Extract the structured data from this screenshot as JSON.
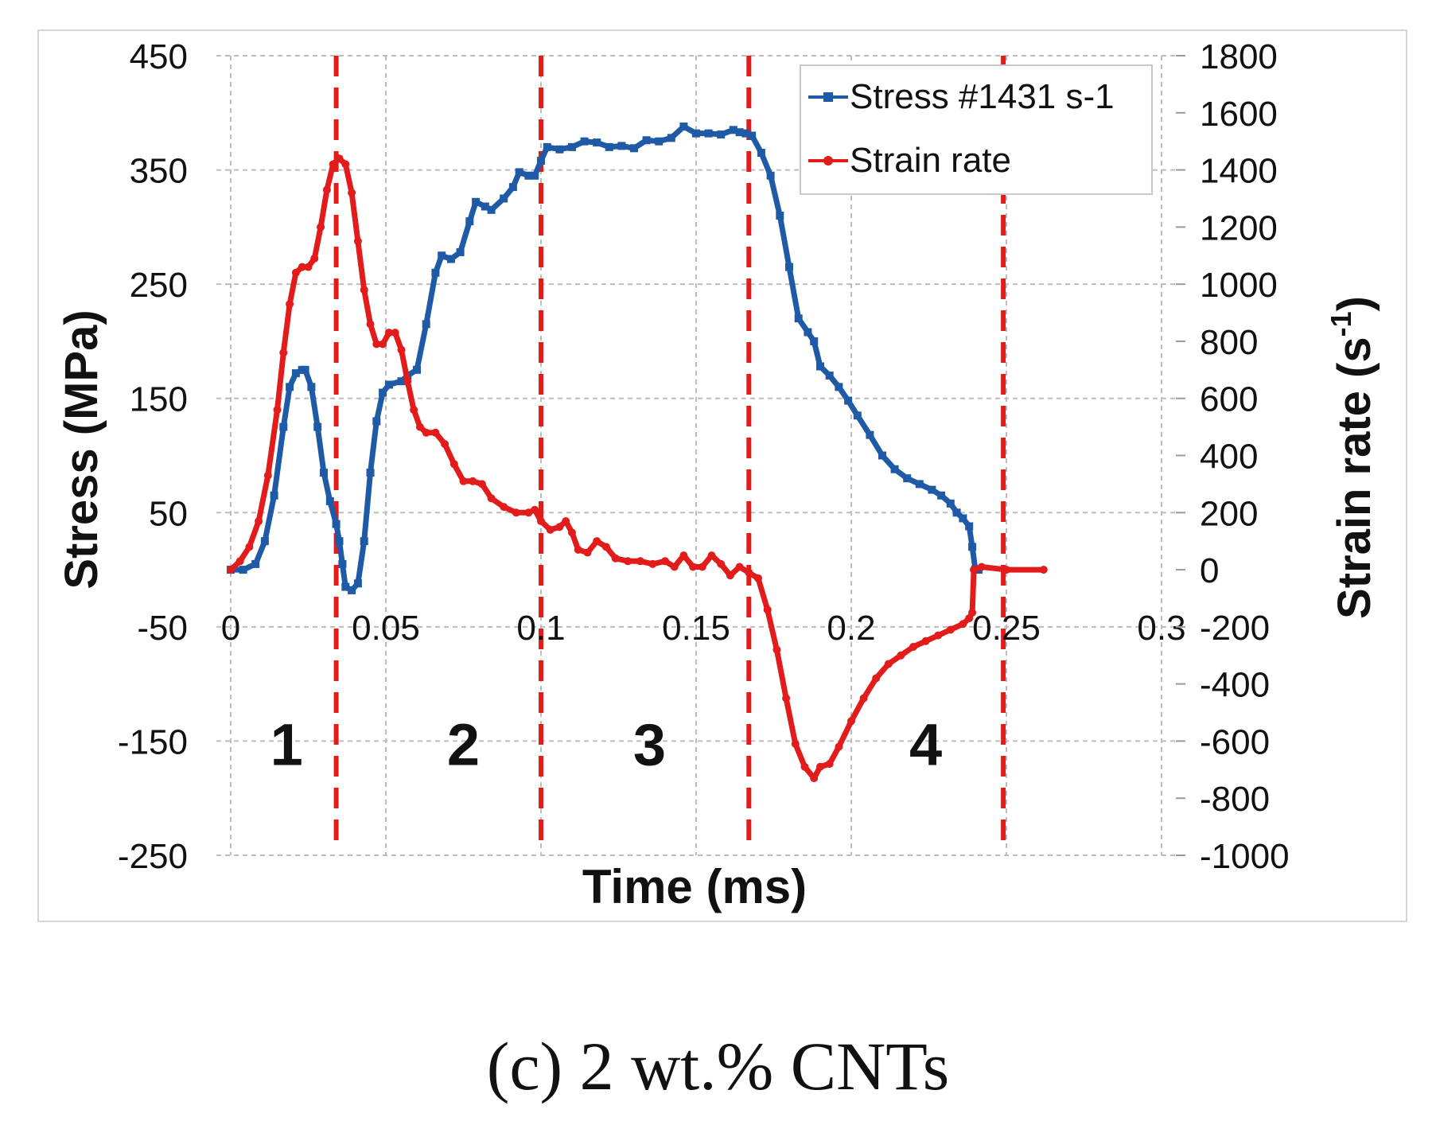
{
  "caption": "(c) 2 wt.% CNTs",
  "chart_data": {
    "type": "line",
    "xlabel": "Time (ms)",
    "ylabel_left": "Stress (MPa)",
    "ylabel_right_base": "Strain rate (s",
    "ylabel_right_sup": "-1",
    "ylabel_right_tail": ")",
    "xlim": [
      0,
      0.3
    ],
    "ylim_left": [
      -250,
      450
    ],
    "ylim_right": [
      -1000,
      1800
    ],
    "x_ticks": [
      "0",
      "0.05",
      "0.1",
      "0.15",
      "0.2",
      "0.25",
      "0.3"
    ],
    "x_tick_values": [
      0,
      0.05,
      0.1,
      0.15,
      0.2,
      0.25,
      0.3
    ],
    "y_left_ticks": [
      "450",
      "350",
      "250",
      "150",
      "50",
      "-50",
      "-150",
      "-250"
    ],
    "y_left_tick_values": [
      450,
      350,
      250,
      150,
      50,
      -50,
      -150,
      -250
    ],
    "y_right_ticks": [
      "1800",
      "1600",
      "1400",
      "1200",
      "1000",
      "800",
      "600",
      "400",
      "200",
      "0",
      "-200",
      "-400",
      "-600",
      "-800",
      "-1000"
    ],
    "y_right_tick_values": [
      1800,
      1600,
      1400,
      1200,
      1000,
      800,
      600,
      400,
      200,
      0,
      -200,
      -400,
      -600,
      -800,
      -1000
    ],
    "grid": true,
    "legend_position": "top-right",
    "colors": {
      "stress": "#1f5aa6",
      "strain": "#e21b1b",
      "divider": "#e21b1b",
      "grid": "#bdbdbd",
      "axis": "#222222"
    },
    "series": [
      {
        "name": "Stress #1431 s-1",
        "axis": "left",
        "marker": "square",
        "points": [
          [
            0.0,
            0
          ],
          [
            0.004,
            0
          ],
          [
            0.008,
            5
          ],
          [
            0.011,
            25
          ],
          [
            0.014,
            65
          ],
          [
            0.017,
            125
          ],
          [
            0.019,
            160
          ],
          [
            0.021,
            172
          ],
          [
            0.023,
            175
          ],
          [
            0.024,
            175
          ],
          [
            0.026,
            160
          ],
          [
            0.028,
            125
          ],
          [
            0.03,
            85
          ],
          [
            0.032,
            60
          ],
          [
            0.034,
            40
          ],
          [
            0.035,
            25
          ],
          [
            0.036,
            5
          ],
          [
            0.037,
            -15
          ],
          [
            0.039,
            -18
          ],
          [
            0.041,
            -12
          ],
          [
            0.043,
            25
          ],
          [
            0.045,
            85
          ],
          [
            0.047,
            130
          ],
          [
            0.049,
            155
          ],
          [
            0.051,
            162
          ],
          [
            0.055,
            165
          ],
          [
            0.057,
            170
          ],
          [
            0.06,
            175
          ],
          [
            0.063,
            215
          ],
          [
            0.066,
            260
          ],
          [
            0.068,
            275
          ],
          [
            0.071,
            272
          ],
          [
            0.074,
            278
          ],
          [
            0.077,
            305
          ],
          [
            0.079,
            322
          ],
          [
            0.082,
            318
          ],
          [
            0.084,
            315
          ],
          [
            0.088,
            325
          ],
          [
            0.091,
            335
          ],
          [
            0.093,
            348
          ],
          [
            0.096,
            345
          ],
          [
            0.098,
            345
          ],
          [
            0.1,
            358
          ],
          [
            0.102,
            370
          ],
          [
            0.106,
            368
          ],
          [
            0.11,
            370
          ],
          [
            0.114,
            375
          ],
          [
            0.118,
            374
          ],
          [
            0.122,
            370
          ],
          [
            0.126,
            371
          ],
          [
            0.13,
            369
          ],
          [
            0.134,
            376
          ],
          [
            0.138,
            375
          ],
          [
            0.142,
            378
          ],
          [
            0.146,
            388
          ],
          [
            0.15,
            382
          ],
          [
            0.154,
            382
          ],
          [
            0.158,
            381
          ],
          [
            0.162,
            385
          ],
          [
            0.164,
            383
          ],
          [
            0.166,
            382
          ],
          [
            0.168,
            380
          ],
          [
            0.171,
            365
          ],
          [
            0.174,
            345
          ],
          [
            0.177,
            310
          ],
          [
            0.18,
            265
          ],
          [
            0.183,
            220
          ],
          [
            0.186,
            208
          ],
          [
            0.188,
            200
          ],
          [
            0.19,
            178
          ],
          [
            0.193,
            170
          ],
          [
            0.196,
            160
          ],
          [
            0.199,
            148
          ],
          [
            0.202,
            135
          ],
          [
            0.206,
            118
          ],
          [
            0.21,
            100
          ],
          [
            0.214,
            88
          ],
          [
            0.218,
            80
          ],
          [
            0.222,
            75
          ],
          [
            0.226,
            70
          ],
          [
            0.229,
            65
          ],
          [
            0.232,
            58
          ],
          [
            0.234,
            50
          ],
          [
            0.236,
            45
          ],
          [
            0.238,
            38
          ],
          [
            0.239,
            20
          ],
          [
            0.24,
            0
          ],
          [
            0.241,
            0
          ]
        ]
      },
      {
        "name": "Strain rate",
        "axis": "right",
        "marker": "circle",
        "points": [
          [
            0.0,
            0
          ],
          [
            0.003,
            30
          ],
          [
            0.006,
            80
          ],
          [
            0.009,
            170
          ],
          [
            0.012,
            330
          ],
          [
            0.015,
            560
          ],
          [
            0.017,
            760
          ],
          [
            0.019,
            930
          ],
          [
            0.021,
            1040
          ],
          [
            0.023,
            1060
          ],
          [
            0.025,
            1060
          ],
          [
            0.027,
            1090
          ],
          [
            0.029,
            1200
          ],
          [
            0.031,
            1330
          ],
          [
            0.033,
            1420
          ],
          [
            0.035,
            1440
          ],
          [
            0.037,
            1420
          ],
          [
            0.039,
            1320
          ],
          [
            0.041,
            1150
          ],
          [
            0.043,
            980
          ],
          [
            0.045,
            860
          ],
          [
            0.047,
            790
          ],
          [
            0.049,
            790
          ],
          [
            0.051,
            830
          ],
          [
            0.053,
            830
          ],
          [
            0.055,
            770
          ],
          [
            0.057,
            660
          ],
          [
            0.059,
            560
          ],
          [
            0.061,
            500
          ],
          [
            0.063,
            480
          ],
          [
            0.066,
            480
          ],
          [
            0.069,
            440
          ],
          [
            0.072,
            370
          ],
          [
            0.075,
            310
          ],
          [
            0.078,
            310
          ],
          [
            0.081,
            300
          ],
          [
            0.084,
            250
          ],
          [
            0.088,
            220
          ],
          [
            0.092,
            200
          ],
          [
            0.096,
            200
          ],
          [
            0.098,
            210
          ],
          [
            0.1,
            170
          ],
          [
            0.103,
            140
          ],
          [
            0.106,
            150
          ],
          [
            0.108,
            170
          ],
          [
            0.11,
            130
          ],
          [
            0.112,
            70
          ],
          [
            0.115,
            60
          ],
          [
            0.118,
            100
          ],
          [
            0.121,
            80
          ],
          [
            0.124,
            40
          ],
          [
            0.128,
            30
          ],
          [
            0.132,
            30
          ],
          [
            0.136,
            20
          ],
          [
            0.14,
            30
          ],
          [
            0.143,
            10
          ],
          [
            0.146,
            50
          ],
          [
            0.149,
            10
          ],
          [
            0.152,
            10
          ],
          [
            0.155,
            50
          ],
          [
            0.158,
            20
          ],
          [
            0.161,
            -20
          ],
          [
            0.164,
            10
          ],
          [
            0.167,
            -10
          ],
          [
            0.17,
            -30
          ],
          [
            0.173,
            -140
          ],
          [
            0.176,
            -280
          ],
          [
            0.179,
            -450
          ],
          [
            0.182,
            -610
          ],
          [
            0.185,
            -690
          ],
          [
            0.188,
            -730
          ],
          [
            0.19,
            -690
          ],
          [
            0.193,
            -680
          ],
          [
            0.196,
            -620
          ],
          [
            0.2,
            -530
          ],
          [
            0.204,
            -450
          ],
          [
            0.208,
            -380
          ],
          [
            0.212,
            -330
          ],
          [
            0.216,
            -300
          ],
          [
            0.22,
            -270
          ],
          [
            0.224,
            -250
          ],
          [
            0.228,
            -230
          ],
          [
            0.232,
            -210
          ],
          [
            0.236,
            -190
          ],
          [
            0.238,
            -170
          ],
          [
            0.239,
            -150
          ],
          [
            0.2395,
            0
          ],
          [
            0.242,
            10
          ],
          [
            0.25,
            0
          ],
          [
            0.262,
            0
          ]
        ]
      }
    ],
    "dividers_x": [
      0.034,
      0.1,
      0.167,
      0.249
    ],
    "dividers_labels_comment": "vertical red dashed lines separating phases",
    "region_labels": [
      {
        "text": "1",
        "x": 0.018
      },
      {
        "text": "2",
        "x": 0.075
      },
      {
        "text": "3",
        "x": 0.135
      },
      {
        "text": "4",
        "x": 0.224
      }
    ],
    "region_label_value": -150
  }
}
